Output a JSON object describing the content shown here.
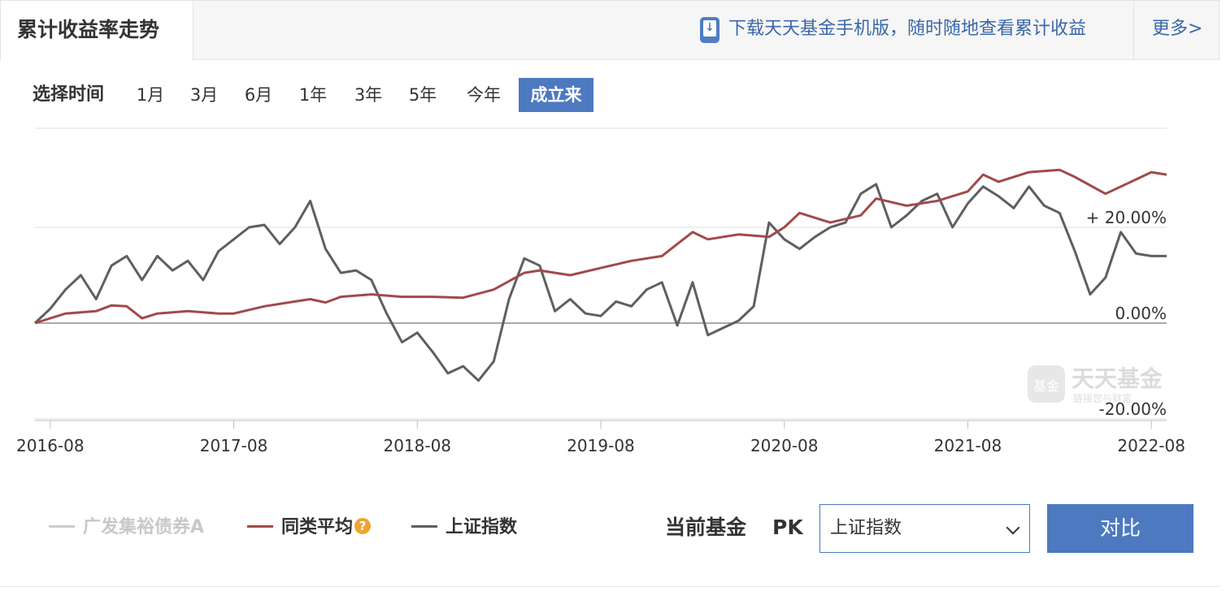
{
  "panel": {
    "title": "累计收益率走势"
  },
  "promo": {
    "text": "下载天天基金手机版，随时随地查看累计收益",
    "icon": "phone-download-icon"
  },
  "more": {
    "label": "更多>"
  },
  "time_filter": {
    "label": "选择时间",
    "options": [
      "1月",
      "3月",
      "6月",
      "1年",
      "3年",
      "5年",
      "今年",
      "成立来"
    ],
    "active": "成立来"
  },
  "watermark": {
    "text": "天天基金",
    "sub": "链接您与财富",
    "badge": "基金"
  },
  "legend": {
    "items": [
      {
        "name": "广发集裕债券A",
        "color": "#cccccc",
        "disabled": true
      },
      {
        "name": "同类平均",
        "color": "#a14a4a",
        "disabled": false,
        "help_icon": "question-icon",
        "help_glyph": "?"
      },
      {
        "name": "上证指数",
        "color": "#5f5f5f",
        "disabled": false
      }
    ]
  },
  "compare": {
    "label": "当前基金",
    "pk": "PK",
    "selected": "上证指数",
    "button": "对比"
  },
  "chart_data": {
    "type": "line",
    "ylim": [
      -20,
      30
    ],
    "x_range": [
      "2016-07",
      "2022-09"
    ],
    "y_ticks": [
      {
        "value": 20,
        "label": "+ 20.00%"
      },
      {
        "value": 0,
        "label": "0.00%"
      },
      {
        "value": -20,
        "label": "-20.00%"
      }
    ],
    "x_ticks": [
      "2016-08",
      "2017-08",
      "2018-08",
      "2019-08",
      "2020-08",
      "2021-08",
      "2022-08"
    ],
    "grid": true,
    "series": [
      {
        "name": "同类平均",
        "color": "#a14a4a",
        "points": [
          [
            "2016-07",
            0.0
          ],
          [
            "2016-09",
            2.0
          ],
          [
            "2016-11",
            2.5
          ],
          [
            "2016-12",
            3.7
          ],
          [
            "2017-01",
            3.5
          ],
          [
            "2017-02",
            1.0
          ],
          [
            "2017-03",
            2.0
          ],
          [
            "2017-05",
            2.5
          ],
          [
            "2017-07",
            2.0
          ],
          [
            "2017-08",
            2.0
          ],
          [
            "2017-10",
            3.5
          ],
          [
            "2017-12",
            4.5
          ],
          [
            "2018-01",
            5.0
          ],
          [
            "2018-02",
            4.3
          ],
          [
            "2018-03",
            5.5
          ],
          [
            "2018-05",
            6.0
          ],
          [
            "2018-07",
            5.5
          ],
          [
            "2018-09",
            5.5
          ],
          [
            "2018-11",
            5.3
          ],
          [
            "2019-01",
            7.0
          ],
          [
            "2019-03",
            10.5
          ],
          [
            "2019-04",
            11.0
          ],
          [
            "2019-06",
            10.0
          ],
          [
            "2019-08",
            11.5
          ],
          [
            "2019-10",
            13.0
          ],
          [
            "2019-12",
            14.0
          ],
          [
            "2020-01",
            16.5
          ],
          [
            "2020-02",
            19.0
          ],
          [
            "2020-03",
            17.5
          ],
          [
            "2020-05",
            18.5
          ],
          [
            "2020-07",
            18.0
          ],
          [
            "2020-08",
            20.0
          ],
          [
            "2020-09",
            23.0
          ],
          [
            "2020-11",
            21.0
          ],
          [
            "2021-01",
            22.5
          ],
          [
            "2021-02",
            26.0
          ],
          [
            "2021-04",
            24.5
          ],
          [
            "2021-06",
            25.5
          ],
          [
            "2021-08",
            27.5
          ],
          [
            "2021-09",
            31.0
          ],
          [
            "2021-10",
            29.5
          ],
          [
            "2021-12",
            31.5
          ],
          [
            "2022-02",
            32.0
          ],
          [
            "2022-03",
            30.5
          ],
          [
            "2022-05",
            27.0
          ],
          [
            "2022-07",
            30.0
          ],
          [
            "2022-08",
            31.5
          ],
          [
            "2022-09",
            31.0
          ]
        ]
      },
      {
        "name": "上证指数",
        "color": "#5f5f5f",
        "points": [
          [
            "2016-07",
            0.0
          ],
          [
            "2016-08",
            3.0
          ],
          [
            "2016-09",
            7.0
          ],
          [
            "2016-10",
            10.0
          ],
          [
            "2016-11",
            5.0
          ],
          [
            "2016-12",
            12.0
          ],
          [
            "2017-01",
            14.0
          ],
          [
            "2017-02",
            9.0
          ],
          [
            "2017-03",
            14.0
          ],
          [
            "2017-04",
            11.0
          ],
          [
            "2017-05",
            13.0
          ],
          [
            "2017-06",
            9.0
          ],
          [
            "2017-07",
            15.0
          ],
          [
            "2017-08",
            17.5
          ],
          [
            "2017-09",
            20.0
          ],
          [
            "2017-10",
            20.5
          ],
          [
            "2017-11",
            16.5
          ],
          [
            "2017-12",
            20.0
          ],
          [
            "2018-01",
            25.5
          ],
          [
            "2018-02",
            15.5
          ],
          [
            "2018-03",
            10.5
          ],
          [
            "2018-04",
            11.0
          ],
          [
            "2018-05",
            9.0
          ],
          [
            "2018-06",
            2.0
          ],
          [
            "2018-07",
            -4.0
          ],
          [
            "2018-08",
            -2.0
          ],
          [
            "2018-09",
            -6.0
          ],
          [
            "2018-10",
            -10.5
          ],
          [
            "2018-11",
            -9.0
          ],
          [
            "2018-12",
            -12.0
          ],
          [
            "2019-01",
            -8.0
          ],
          [
            "2019-02",
            5.0
          ],
          [
            "2019-03",
            13.5
          ],
          [
            "2019-04",
            12.0
          ],
          [
            "2019-05",
            2.5
          ],
          [
            "2019-06",
            5.0
          ],
          [
            "2019-07",
            2.0
          ],
          [
            "2019-08",
            1.5
          ],
          [
            "2019-09",
            4.5
          ],
          [
            "2019-10",
            3.5
          ],
          [
            "2019-11",
            7.0
          ],
          [
            "2019-12",
            8.5
          ],
          [
            "2020-01",
            -0.5
          ],
          [
            "2020-02",
            8.5
          ],
          [
            "2020-03",
            -2.5
          ],
          [
            "2020-04",
            -1.0
          ],
          [
            "2020-05",
            0.5
          ],
          [
            "2020-06",
            3.5
          ],
          [
            "2020-07",
            21.0
          ],
          [
            "2020-08",
            17.5
          ],
          [
            "2020-09",
            15.5
          ],
          [
            "2020-10",
            18.0
          ],
          [
            "2020-11",
            20.0
          ],
          [
            "2020-12",
            21.0
          ],
          [
            "2021-01",
            27.0
          ],
          [
            "2021-02",
            29.0
          ],
          [
            "2021-03",
            20.0
          ],
          [
            "2021-04",
            22.5
          ],
          [
            "2021-05",
            25.5
          ],
          [
            "2021-06",
            27.0
          ],
          [
            "2021-07",
            20.0
          ],
          [
            "2021-08",
            25.0
          ],
          [
            "2021-09",
            28.5
          ],
          [
            "2021-10",
            26.5
          ],
          [
            "2021-11",
            24.0
          ],
          [
            "2021-12",
            28.5
          ],
          [
            "2022-01",
            24.5
          ],
          [
            "2022-02",
            23.0
          ],
          [
            "2022-03",
            15.0
          ],
          [
            "2022-04",
            6.0
          ],
          [
            "2022-05",
            9.5
          ],
          [
            "2022-06",
            19.0
          ],
          [
            "2022-07",
            14.5
          ],
          [
            "2022-08",
            14.0
          ],
          [
            "2022-09",
            14.0
          ]
        ]
      }
    ]
  }
}
